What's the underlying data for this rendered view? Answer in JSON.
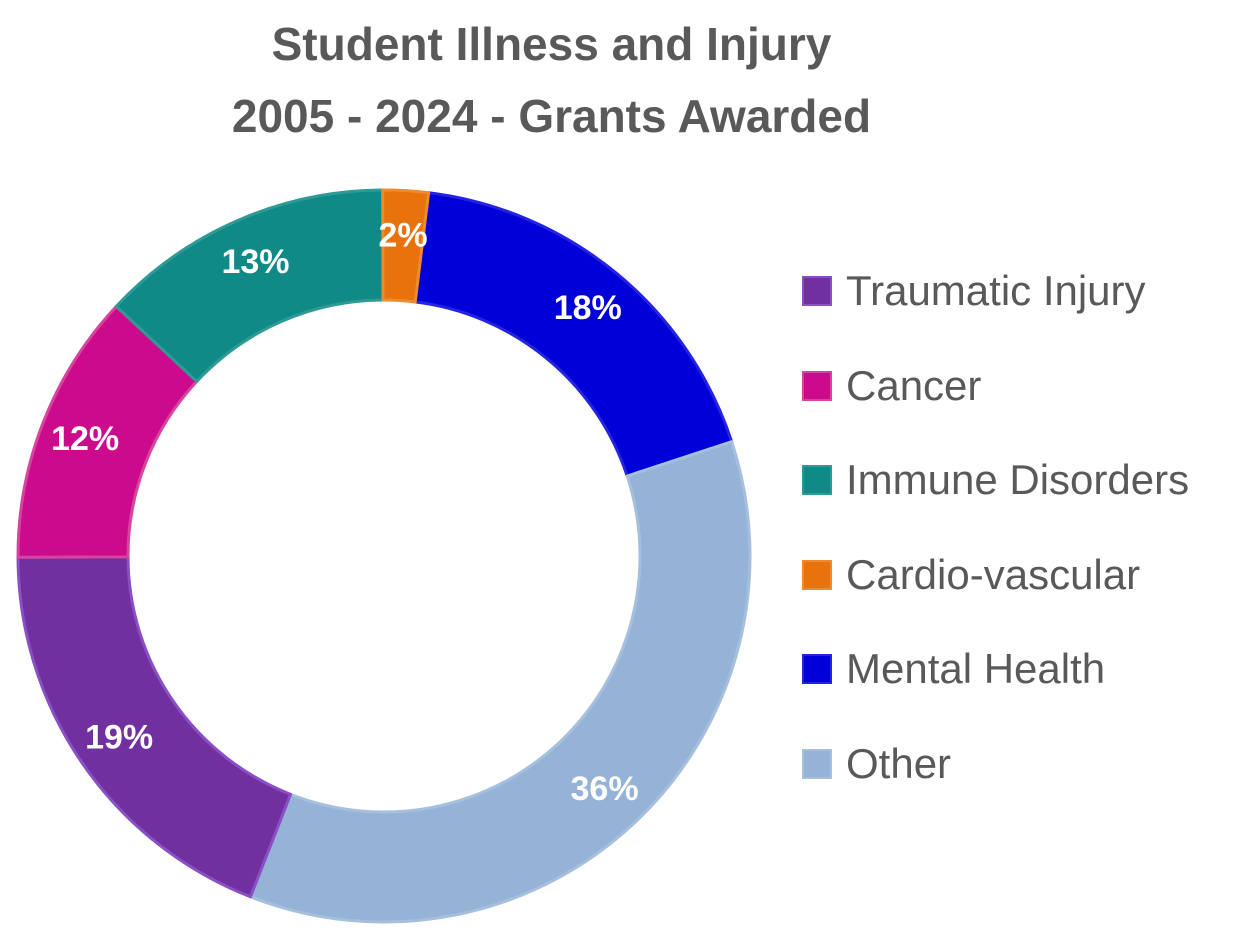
{
  "chart_data": {
    "type": "pie",
    "variant": "donut",
    "title": [
      "Student Illness and Injury",
      "2005 - 2024 - Grants Awarded"
    ],
    "categories": [
      "Traumatic Injury",
      "Cancer",
      "Immune Disorders",
      "Cardio-vascular",
      "Mental Health",
      "Other"
    ],
    "values": [
      19,
      12,
      13,
      2,
      18,
      36
    ],
    "data_labels": [
      "19%",
      "12%",
      "13%",
      "2%",
      "18%",
      "36%"
    ],
    "colors": [
      "#7030A0",
      "#CC0A8C",
      "#0F8A86",
      "#E8720C",
      "#0000D8",
      "#95B3D7"
    ],
    "border_colors": [
      "#8A4FC4",
      "#D6449E",
      "#2E9A96",
      "#F08A30",
      "#2323E0",
      "#A6BFDD"
    ],
    "label_color": "#FFFFFF",
    "legend_placement": "right",
    "slice_order_clockwise_from_top": [
      "Mental Health",
      "Other",
      "Traumatic Injury",
      "Cancer",
      "Immune Disorders",
      "Cardio-vascular"
    ],
    "start_angle_deg": 7
  }
}
